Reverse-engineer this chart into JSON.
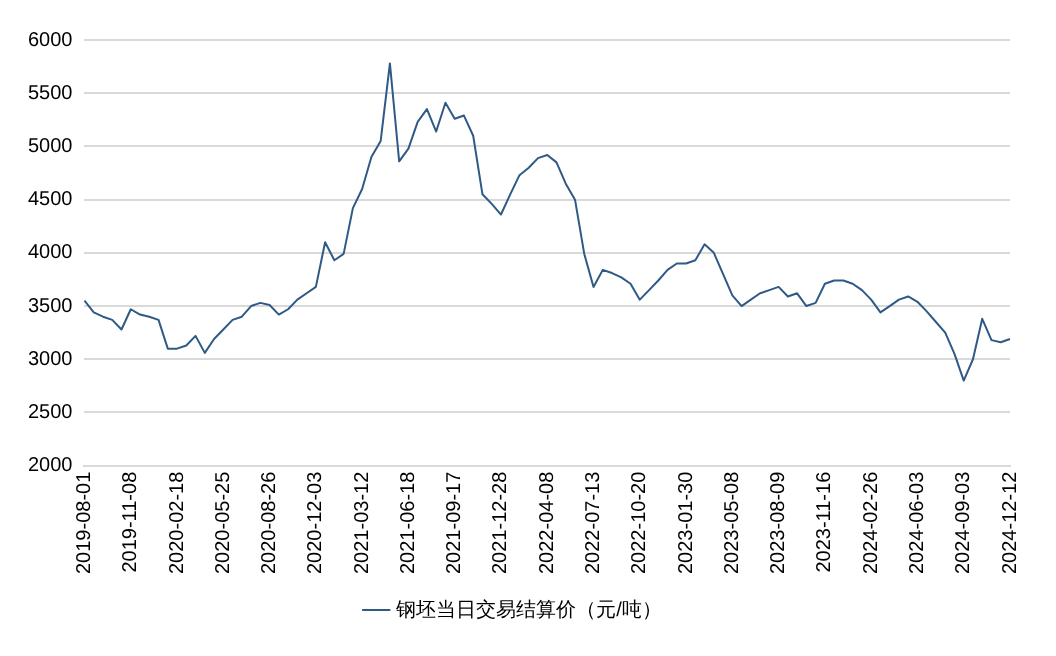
{
  "chart_data": {
    "type": "line",
    "categories": [
      "2019-08-01",
      null,
      null,
      null,
      null,
      "2019-11-08",
      null,
      null,
      null,
      null,
      "2020-02-18",
      null,
      null,
      null,
      null,
      "2020-05-25",
      null,
      null,
      null,
      null,
      "2020-08-26",
      null,
      null,
      null,
      null,
      "2020-12-03",
      null,
      null,
      null,
      null,
      "2021-03-12",
      null,
      null,
      null,
      null,
      "2021-06-18",
      null,
      null,
      null,
      null,
      "2021-09-17",
      null,
      null,
      null,
      null,
      "2021-12-28",
      null,
      null,
      null,
      null,
      "2022-04-08",
      null,
      null,
      null,
      null,
      "2022-07-13",
      null,
      null,
      null,
      null,
      "2022-10-20",
      null,
      null,
      null,
      null,
      "2023-01-30",
      null,
      null,
      null,
      null,
      "2023-05-08",
      null,
      null,
      null,
      null,
      "2023-08-09",
      null,
      null,
      null,
      null,
      "2023-11-16",
      null,
      null,
      null,
      null,
      "2024-02-26",
      null,
      null,
      null,
      null,
      "2024-06-03",
      null,
      null,
      null,
      null,
      "2024-09-03",
      null,
      null,
      null,
      null,
      "2024-12-12"
    ],
    "series": [
      {
        "name": "钢坯当日交易结算价（元/吨）",
        "color": "#2f5a86",
        "values": [
          3550,
          3440,
          3400,
          3370,
          3280,
          3470,
          3420,
          3400,
          3370,
          3100,
          3100,
          3130,
          3220,
          3060,
          3190,
          3280,
          3370,
          3400,
          3500,
          3530,
          3510,
          3420,
          3470,
          3560,
          3620,
          3680,
          4100,
          3930,
          3990,
          4420,
          4600,
          4900,
          5050,
          5780,
          4860,
          4980,
          5230,
          5350,
          5140,
          5410,
          5260,
          5290,
          5100,
          4550,
          4460,
          4360,
          4550,
          4730,
          4800,
          4890,
          4920,
          4850,
          4650,
          4500,
          3990,
          3680,
          3840,
          3810,
          3770,
          3710,
          3560,
          3650,
          3740,
          3840,
          3900,
          3900,
          3930,
          4080,
          4000,
          3800,
          3600,
          3500,
          3560,
          3620,
          3650,
          3680,
          3590,
          3620,
          3500,
          3530,
          3710,
          3740,
          3740,
          3710,
          3650,
          3560,
          3440,
          3500,
          3560,
          3590,
          3540,
          3450,
          3350,
          3250,
          3050,
          2800,
          3000,
          3380,
          3180,
          3160,
          3190
        ]
      }
    ],
    "ylim": [
      2000,
      6000
    ],
    "yticks": [
      2000,
      2500,
      3000,
      3500,
      4000,
      4500,
      5000,
      5500,
      6000
    ],
    "grid": "y",
    "legend": "bottom",
    "marker": "none",
    "line_style": "solid"
  }
}
